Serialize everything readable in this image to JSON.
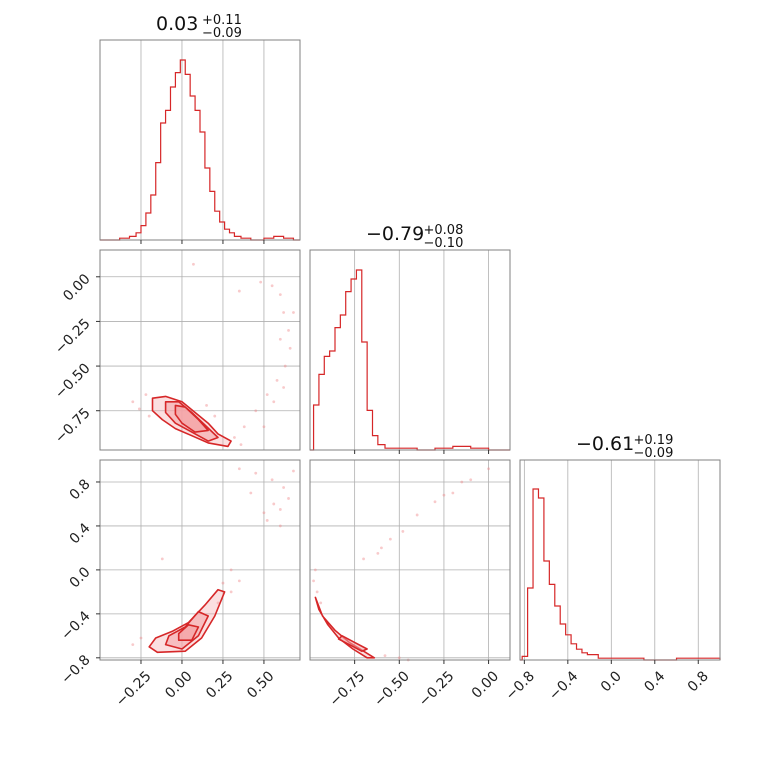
{
  "chart_data": {
    "type": "corner",
    "color": "#d62728",
    "fill_color": "#f4a3a5",
    "grid": true,
    "parameters": 3,
    "diag": [
      {
        "title": {
          "value": "0.03",
          "plus": "+0.11",
          "minus": "−0.09"
        },
        "xlim": [
          -0.5,
          0.72
        ],
        "bins": [
          [
            -0.45,
            0.0
          ],
          [
            -0.38,
            0.01
          ],
          [
            -0.32,
            0.02
          ],
          [
            -0.28,
            0.04
          ],
          [
            -0.25,
            0.08
          ],
          [
            -0.22,
            0.15
          ],
          [
            -0.19,
            0.25
          ],
          [
            -0.16,
            0.43
          ],
          [
            -0.13,
            0.65
          ],
          [
            -0.1,
            0.72
          ],
          [
            -0.07,
            0.85
          ],
          [
            -0.04,
            0.93
          ],
          [
            -0.01,
            1.0
          ],
          [
            0.02,
            0.92
          ],
          [
            0.05,
            0.8
          ],
          [
            0.08,
            0.72
          ],
          [
            0.11,
            0.6
          ],
          [
            0.14,
            0.4
          ],
          [
            0.17,
            0.27
          ],
          [
            0.2,
            0.16
          ],
          [
            0.23,
            0.1
          ],
          [
            0.26,
            0.06
          ],
          [
            0.29,
            0.04
          ],
          [
            0.32,
            0.02
          ],
          [
            0.36,
            0.01
          ],
          [
            0.42,
            0.0
          ],
          [
            0.5,
            0.01
          ],
          [
            0.56,
            0.02
          ],
          [
            0.62,
            0.01
          ],
          [
            0.68,
            0.0
          ]
        ]
      },
      {
        "title": {
          "value": "−0.79",
          "plus": "+0.08",
          "minus": "−0.10"
        },
        "xlim": [
          -1.0,
          0.12
        ],
        "bins": [
          [
            -0.98,
            0.25
          ],
          [
            -0.95,
            0.42
          ],
          [
            -0.92,
            0.52
          ],
          [
            -0.89,
            0.55
          ],
          [
            -0.86,
            0.68
          ],
          [
            -0.83,
            0.75
          ],
          [
            -0.8,
            0.88
          ],
          [
            -0.77,
            0.95
          ],
          [
            -0.74,
            1.0
          ],
          [
            -0.71,
            0.6
          ],
          [
            -0.68,
            0.22
          ],
          [
            -0.65,
            0.08
          ],
          [
            -0.62,
            0.03
          ],
          [
            -0.58,
            0.01
          ],
          [
            -0.5,
            0.01
          ],
          [
            -0.4,
            0.0
          ],
          [
            -0.3,
            0.01
          ],
          [
            -0.2,
            0.02
          ],
          [
            -0.1,
            0.01
          ],
          [
            0.0,
            0.0
          ]
        ]
      },
      {
        "title": {
          "value": "−0.61",
          "plus": "+0.19",
          "minus": "−0.09"
        },
        "xlim": [
          -0.84,
          1.0
        ],
        "bins": [
          [
            -0.82,
            0.02
          ],
          [
            -0.77,
            0.4
          ],
          [
            -0.72,
            0.95
          ],
          [
            -0.67,
            0.9
          ],
          [
            -0.62,
            0.55
          ],
          [
            -0.57,
            0.42
          ],
          [
            -0.52,
            0.3
          ],
          [
            -0.47,
            0.2
          ],
          [
            -0.42,
            0.14
          ],
          [
            -0.37,
            0.09
          ],
          [
            -0.32,
            0.06
          ],
          [
            -0.27,
            0.04
          ],
          [
            -0.22,
            0.03
          ],
          [
            -0.12,
            0.01
          ],
          [
            0.0,
            0.01
          ],
          [
            0.3,
            0.0
          ],
          [
            0.6,
            0.01
          ],
          [
            0.9,
            0.01
          ]
        ]
      }
    ],
    "offdiag": [
      {
        "row": 1,
        "col": 0,
        "xlim": [
          -0.5,
          0.72
        ],
        "ylim": [
          -0.97,
          0.15
        ],
        "contours": [
          [
            [
              -0.18,
              -0.68
            ],
            [
              -0.1,
              -0.67
            ],
            [
              0.0,
              -0.7
            ],
            [
              0.08,
              -0.76
            ],
            [
              0.16,
              -0.82
            ],
            [
              0.22,
              -0.88
            ],
            [
              0.3,
              -0.92
            ],
            [
              0.28,
              -0.95
            ],
            [
              0.16,
              -0.93
            ],
            [
              0.06,
              -0.89
            ],
            [
              -0.04,
              -0.85
            ],
            [
              -0.12,
              -0.8
            ],
            [
              -0.18,
              -0.75
            ]
          ],
          [
            [
              -0.1,
              -0.7
            ],
            [
              -0.02,
              -0.7
            ],
            [
              0.06,
              -0.76
            ],
            [
              0.14,
              -0.83
            ],
            [
              0.22,
              -0.9
            ],
            [
              0.16,
              -0.92
            ],
            [
              0.06,
              -0.87
            ],
            [
              -0.04,
              -0.82
            ],
            [
              -0.1,
              -0.76
            ]
          ],
          [
            [
              -0.04,
              -0.72
            ],
            [
              0.02,
              -0.73
            ],
            [
              0.1,
              -0.8
            ],
            [
              0.16,
              -0.86
            ],
            [
              0.08,
              -0.87
            ],
            [
              0.0,
              -0.82
            ],
            [
              -0.04,
              -0.77
            ]
          ]
        ],
        "scatter": [
          [
            0.55,
            -0.05
          ],
          [
            0.6,
            -0.1
          ],
          [
            0.62,
            -0.2
          ],
          [
            0.65,
            -0.3
          ],
          [
            0.66,
            -0.4
          ],
          [
            0.63,
            -0.5
          ],
          [
            0.58,
            -0.58
          ],
          [
            0.52,
            -0.66
          ],
          [
            0.45,
            -0.75
          ],
          [
            0.38,
            -0.84
          ],
          [
            0.32,
            -0.9
          ],
          [
            0.48,
            -0.03
          ],
          [
            0.35,
            -0.08
          ],
          [
            0.07,
            0.07
          ],
          [
            0.62,
            -0.62
          ],
          [
            0.56,
            -0.7
          ],
          [
            -0.22,
            -0.66
          ],
          [
            -0.3,
            -0.7
          ],
          [
            -0.26,
            -0.74
          ],
          [
            0.2,
            -0.78
          ],
          [
            0.15,
            -0.72
          ],
          [
            -0.2,
            -0.78
          ],
          [
            0.36,
            -0.94
          ],
          [
            0.5,
            -0.84
          ],
          [
            0.68,
            -0.2
          ],
          [
            0.6,
            -0.35
          ]
        ]
      },
      {
        "row": 2,
        "col": 0,
        "xlim": [
          -0.5,
          0.72
        ],
        "ylim": [
          -0.82,
          1.0
        ],
        "contours": [
          [
            [
              -0.2,
              -0.7
            ],
            [
              -0.15,
              -0.75
            ],
            [
              0.02,
              -0.74
            ],
            [
              0.12,
              -0.62
            ],
            [
              0.2,
              -0.42
            ],
            [
              0.26,
              -0.2
            ],
            [
              0.22,
              -0.18
            ],
            [
              0.14,
              -0.32
            ],
            [
              0.04,
              -0.48
            ],
            [
              -0.06,
              -0.56
            ],
            [
              -0.16,
              -0.62
            ]
          ],
          [
            [
              -0.1,
              -0.68
            ],
            [
              0.0,
              -0.72
            ],
            [
              0.1,
              -0.6
            ],
            [
              0.16,
              -0.42
            ],
            [
              0.1,
              -0.38
            ],
            [
              0.02,
              -0.52
            ],
            [
              -0.08,
              -0.6
            ]
          ],
          [
            [
              -0.02,
              -0.64
            ],
            [
              0.06,
              -0.64
            ],
            [
              0.1,
              -0.52
            ],
            [
              0.04,
              -0.5
            ],
            [
              -0.02,
              -0.58
            ]
          ]
        ],
        "scatter": [
          [
            0.35,
            0.92
          ],
          [
            0.45,
            0.88
          ],
          [
            0.55,
            0.82
          ],
          [
            0.62,
            0.75
          ],
          [
            0.65,
            0.65
          ],
          [
            0.6,
            0.55
          ],
          [
            0.52,
            0.45
          ],
          [
            0.5,
            0.52
          ],
          [
            0.42,
            0.7
          ],
          [
            0.56,
            0.6
          ],
          [
            -0.12,
            0.1
          ],
          [
            0.3,
            0.0
          ],
          [
            0.35,
            -0.1
          ],
          [
            0.25,
            -0.12
          ],
          [
            -0.25,
            -0.62
          ],
          [
            -0.3,
            -0.68
          ],
          [
            0.22,
            -0.3
          ],
          [
            0.3,
            -0.2
          ],
          [
            0.68,
            0.9
          ],
          [
            0.6,
            0.4
          ]
        ]
      },
      {
        "row": 2,
        "col": 1,
        "xlim": [
          -1.0,
          0.12
        ],
        "ylim": [
          -0.82,
          1.0
        ],
        "contours": [
          [
            [
              -0.97,
              -0.25
            ],
            [
              -0.93,
              -0.42
            ],
            [
              -0.86,
              -0.55
            ],
            [
              -0.78,
              -0.66
            ],
            [
              -0.7,
              -0.74
            ],
            [
              -0.64,
              -0.8
            ],
            [
              -0.68,
              -0.8
            ],
            [
              -0.76,
              -0.72
            ],
            [
              -0.84,
              -0.62
            ],
            [
              -0.9,
              -0.5
            ],
            [
              -0.95,
              -0.36
            ]
          ],
          [
            [
              -0.82,
              -0.6
            ],
            [
              -0.75,
              -0.66
            ],
            [
              -0.68,
              -0.72
            ],
            [
              -0.71,
              -0.74
            ],
            [
              -0.78,
              -0.68
            ],
            [
              -0.84,
              -0.63
            ]
          ]
        ],
        "scatter": [
          [
            -0.98,
            -0.1
          ],
          [
            -0.97,
            0.0
          ],
          [
            -0.96,
            -0.2
          ],
          [
            -0.94,
            -0.3
          ],
          [
            -0.6,
            0.2
          ],
          [
            -0.55,
            0.28
          ],
          [
            -0.48,
            0.35
          ],
          [
            -0.4,
            0.5
          ],
          [
            -0.3,
            0.62
          ],
          [
            -0.2,
            0.7
          ],
          [
            -0.1,
            0.82
          ],
          [
            0.0,
            0.92
          ],
          [
            -0.15,
            0.8
          ],
          [
            -0.25,
            0.68
          ],
          [
            -0.62,
            0.15
          ],
          [
            -0.7,
            0.1
          ],
          [
            -0.5,
            -0.8
          ],
          [
            -0.45,
            -0.82
          ],
          [
            -0.58,
            -0.78
          ]
        ]
      }
    ],
    "xticks": [
      {
        "values": [
          -0.25,
          0.0,
          0.25,
          0.5
        ],
        "labels": [
          "−0.25",
          "0.00",
          "0.25",
          "0.50"
        ]
      },
      {
        "values": [
          -0.75,
          -0.5,
          -0.25,
          0.0
        ],
        "labels": [
          "−0.75",
          "−0.50",
          "−0.25",
          "0.00"
        ]
      },
      {
        "values": [
          -0.8,
          -0.4,
          0.0,
          0.4,
          0.8
        ],
        "labels": [
          "−0.8",
          "−0.4",
          "0.0",
          "0.4",
          "0.8"
        ]
      }
    ],
    "yticks": [
      {
        "values": [
          0.0,
          -0.25,
          -0.5,
          -0.75
        ],
        "labels": [
          "0.00",
          "−0.25",
          "−0.50",
          "−0.75"
        ]
      },
      {
        "values": [
          0.8,
          0.4,
          0.0,
          -0.4,
          -0.8
        ],
        "labels": [
          "0.8",
          "0.4",
          "0.0",
          "−0.4",
          "−0.8"
        ]
      }
    ]
  }
}
